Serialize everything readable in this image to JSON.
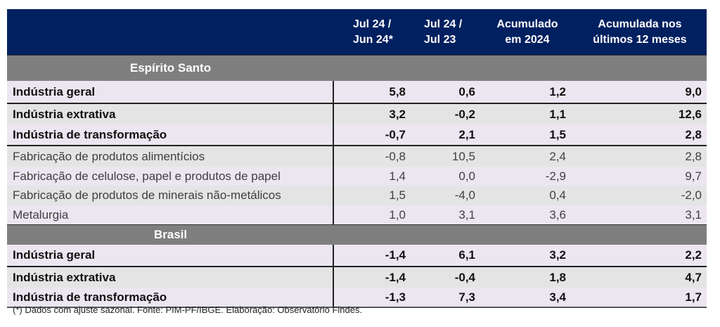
{
  "header": {
    "col1": [
      "Jul 24 /",
      "Jun 24*"
    ],
    "col2": [
      "Jul 24 /",
      "Jul 23"
    ],
    "col3": [
      "Acumulado",
      "em 2024"
    ],
    "col4": [
      "Acumulada nos",
      "últimos 12 meses"
    ]
  },
  "sections": [
    {
      "title": "Espírito Santo",
      "rows": [
        {
          "label": "Indústria geral",
          "values": [
            "5,8",
            "0,6",
            "1,2",
            "9,0"
          ]
        },
        {
          "label": "Indústria extrativa",
          "values": [
            "3,2",
            "-0,2",
            "1,1",
            "12,6"
          ]
        },
        {
          "label": "Indústria de transformação",
          "values": [
            "-0,7",
            "2,1",
            "1,5",
            "2,8"
          ]
        },
        {
          "label": "Fabricação de produtos alimentícios",
          "values": [
            "-0,8",
            "10,5",
            "2,4",
            "2,8"
          ]
        },
        {
          "label": "Fabricação de celulose, papel e produtos de papel",
          "values": [
            "1,4",
            "0,0",
            "-2,9",
            "9,7"
          ]
        },
        {
          "label": "Fabricação de produtos de minerais não-metálicos",
          "values": [
            "1,5",
            "-4,0",
            "0,4",
            "-2,0"
          ]
        },
        {
          "label": "Metalurgia",
          "values": [
            "1,0",
            "3,1",
            "3,6",
            "3,1"
          ]
        }
      ]
    },
    {
      "title": "Brasil",
      "rows": [
        {
          "label": "Indústria geral",
          "values": [
            "-1,4",
            "6,1",
            "3,2",
            "2,2"
          ]
        },
        {
          "label": "Indústria extrativa",
          "values": [
            "-1,4",
            "-0,4",
            "1,8",
            "4,7"
          ]
        },
        {
          "label": "Indústria de transformação",
          "values": [
            "-1,3",
            "7,3",
            "3,4",
            "1,7"
          ]
        }
      ]
    }
  ],
  "footnote": "(*) Dados com ajuste sazonal. Fonte: PIM-PF/IBGE. Elaboração: Observatório Findes.",
  "colors": {
    "header": "#002060",
    "band": "#7f7f7f",
    "row_a": "#ece6f0",
    "row_b": "#e4e4e4"
  }
}
